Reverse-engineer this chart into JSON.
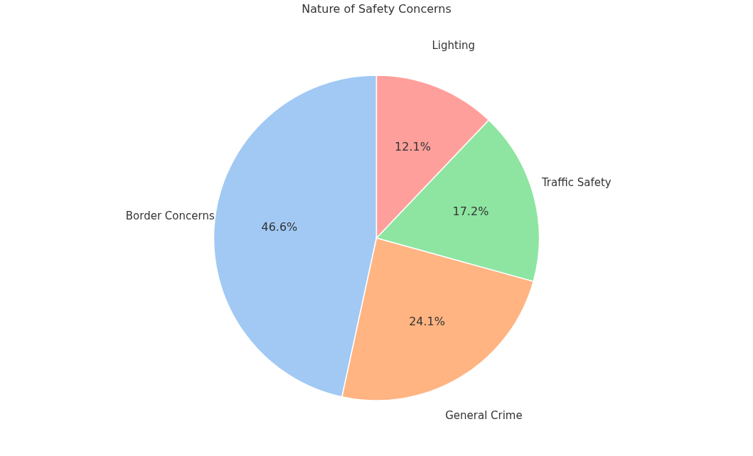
{
  "chart_data": {
    "type": "pie",
    "title": "Nature of Safety Concerns",
    "categories": [
      "Border Concerns",
      "General Crime",
      "Traffic Safety",
      "Lighting"
    ],
    "values": [
      46.6,
      24.1,
      17.2,
      12.1
    ],
    "colors": [
      "#a1c9f4",
      "#ffb482",
      "#8de5a1",
      "#ff9f9b"
    ],
    "value_labels": [
      "46.6%",
      "24.1%",
      "17.2%",
      "12.1%"
    ],
    "legend": false
  }
}
